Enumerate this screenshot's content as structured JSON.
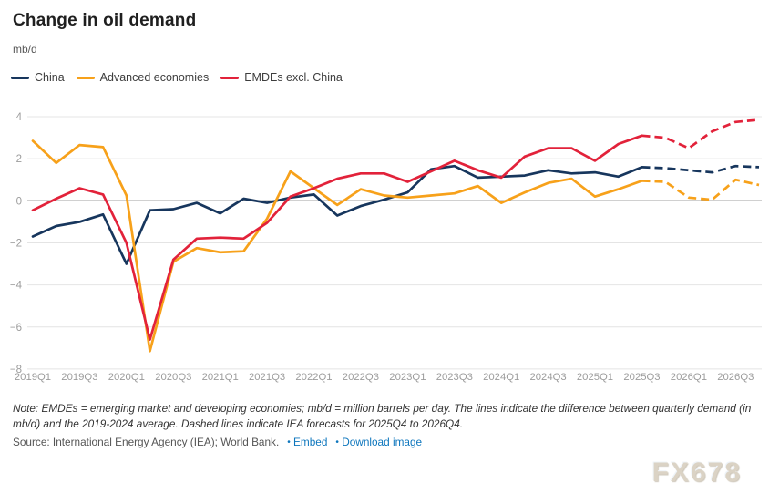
{
  "header": {
    "title": "Change in oil demand",
    "unit_label": "mb/d"
  },
  "legend": {
    "items": [
      {
        "label": "China",
        "color": "#17365d"
      },
      {
        "label": "Advanced economies",
        "color": "#f7a11a"
      },
      {
        "label": "EMDEs excl. China",
        "color": "#e2223a"
      }
    ]
  },
  "chart_data": {
    "type": "line",
    "title": "Change in oil demand",
    "ylabel": "mb/d",
    "ylim": [
      -8,
      4
    ],
    "y_ticks": [
      4,
      2,
      0,
      -2,
      -4,
      -6,
      -8
    ],
    "grid": true,
    "legend_position": "top-left",
    "x": [
      "2019Q1",
      "2019Q2",
      "2019Q3",
      "2019Q4",
      "2020Q1",
      "2020Q2",
      "2020Q3",
      "2020Q4",
      "2021Q1",
      "2021Q2",
      "2021Q3",
      "2021Q4",
      "2022Q1",
      "2022Q2",
      "2022Q3",
      "2022Q4",
      "2023Q1",
      "2023Q2",
      "2023Q3",
      "2023Q4",
      "2024Q1",
      "2024Q2",
      "2024Q3",
      "2024Q4",
      "2025Q1",
      "2025Q2",
      "2025Q3",
      "2025Q4",
      "2026Q1",
      "2026Q2",
      "2026Q3",
      "2026Q4"
    ],
    "x_tick_labels": [
      "2019Q1",
      "2019Q3",
      "2020Q1",
      "2020Q3",
      "2021Q1",
      "2021Q3",
      "2022Q1",
      "2022Q3",
      "2023Q1",
      "2023Q3",
      "2024Q1",
      "2024Q3",
      "2025Q1",
      "2025Q3",
      "2026Q1",
      "2026Q3"
    ],
    "forecast_start_index": 26,
    "forecast_note": "Dashed lines are IEA forecasts for 2025Q4 to 2026Q4",
    "series": [
      {
        "name": "China",
        "color": "#17365d",
        "values": [
          -1.7,
          -1.2,
          -1.0,
          -0.65,
          -3.0,
          -0.45,
          -0.4,
          -0.1,
          -0.6,
          0.1,
          -0.1,
          0.15,
          0.3,
          -0.7,
          -0.25,
          0.05,
          0.4,
          1.5,
          1.65,
          1.1,
          1.15,
          1.2,
          1.45,
          1.3,
          1.35,
          1.15,
          1.6,
          1.55,
          1.45,
          1.35,
          1.65,
          1.6
        ]
      },
      {
        "name": "Advanced economies",
        "color": "#f7a11a",
        "values": [
          2.85,
          1.8,
          2.65,
          2.55,
          0.25,
          -7.15,
          -2.9,
          -2.25,
          -2.45,
          -2.4,
          -0.85,
          1.4,
          0.6,
          -0.2,
          0.55,
          0.25,
          0.15,
          0.25,
          0.35,
          0.7,
          -0.1,
          0.4,
          0.85,
          1.05,
          0.2,
          0.55,
          0.95,
          0.9,
          0.15,
          0.05,
          1.0,
          0.75
        ]
      },
      {
        "name": "EMDEs excl. China",
        "color": "#e2223a",
        "values": [
          -0.45,
          0.1,
          0.6,
          0.3,
          -2.0,
          -6.6,
          -2.8,
          -1.8,
          -1.75,
          -1.8,
          -1.05,
          0.2,
          0.6,
          1.05,
          1.3,
          1.3,
          0.9,
          1.4,
          1.9,
          1.45,
          1.1,
          2.1,
          2.5,
          2.5,
          1.9,
          2.7,
          3.1,
          3.0,
          2.5,
          3.3,
          3.75,
          3.85
        ]
      }
    ]
  },
  "footer": {
    "note": "Note: EMDEs = emerging market and developing economies; mb/d = million barrels per day. The lines indicate the difference between quarterly demand (in mb/d) and the 2019-2024 average. Dashed lines indicate IEA forecasts for 2025Q4 to 2026Q4.",
    "source": "Source: International Energy Agency (IEA); World Bank.",
    "bullet": "•",
    "links": [
      {
        "label": "Embed"
      },
      {
        "label": "Download image"
      }
    ]
  },
  "watermark": {
    "text": "FX678"
  }
}
